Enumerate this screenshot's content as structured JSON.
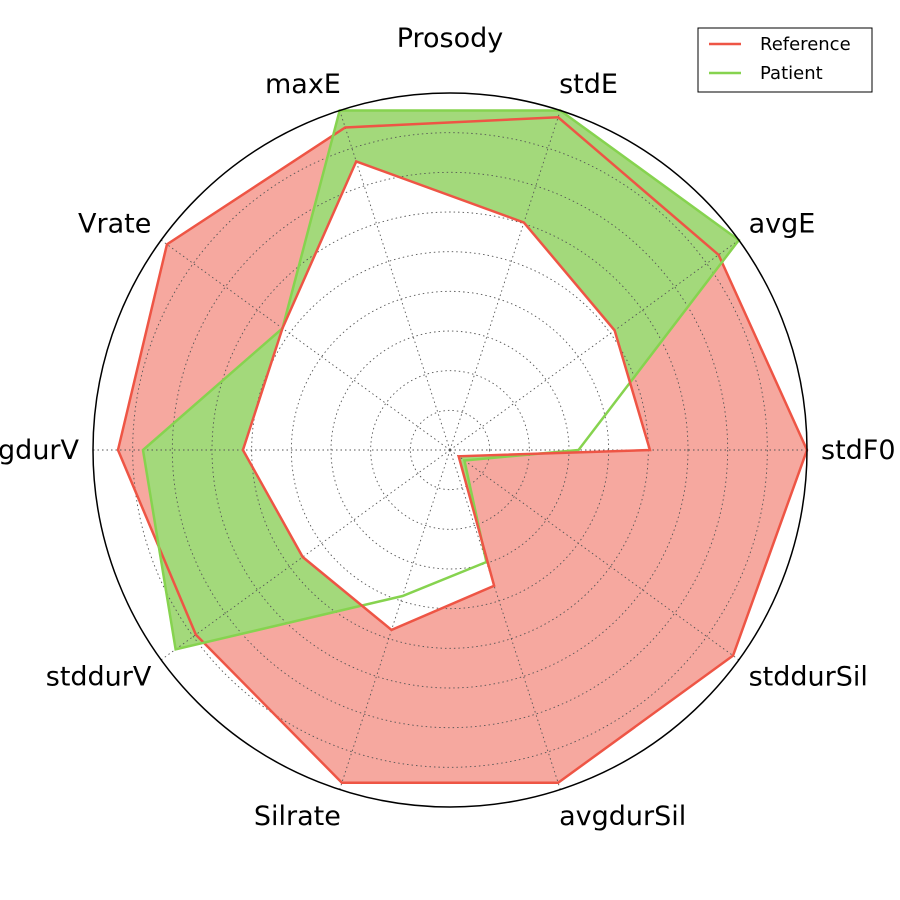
{
  "chart_data": {
    "type": "radar",
    "title": "Prosody",
    "axes": [
      "stdF0",
      "avgE",
      "stdE",
      "maxE",
      "Vrate",
      "avgdurV",
      "stddurV",
      "Silrate",
      "avgdurSil",
      "stddurSil"
    ],
    "rlim": [
      0,
      1
    ],
    "grid": true,
    "legend_position": "top-right",
    "series": [
      {
        "name": "Reference",
        "values": [
          1.0,
          0.93,
          0.98,
          0.95,
          0.98,
          0.93,
          0.88,
          0.98,
          0.98,
          0.98
        ],
        "line_color": "#ee5545",
        "fill_color": "#f6a89f",
        "z": 1
      },
      {
        "name": "Patient",
        "values": [
          0.36,
          1.0,
          1.0,
          1.0,
          0.58,
          0.86,
          0.95,
          0.43,
          0.33,
          0.05
        ],
        "line_color": "#86d34f",
        "fill_color": "#a3d97b",
        "z": 2
      },
      {
        "name": "Reference",
        "values": [
          0.56,
          0.57,
          0.67,
          0.85,
          0.58,
          0.58,
          0.51,
          0.53,
          0.4,
          0.03
        ],
        "line_color": "#ee5545",
        "fill_color": "#ffffff",
        "z": 3
      }
    ]
  }
}
